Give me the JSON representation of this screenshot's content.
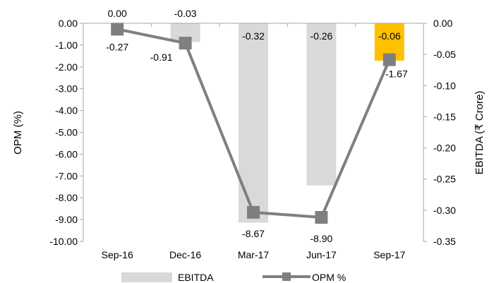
{
  "chart_data": {
    "type": "bar+line",
    "categories": [
      "Sep-16",
      "Dec-16",
      "Mar-17",
      "Jun-17",
      "Sep-17"
    ],
    "series": [
      {
        "name": "EBITDA",
        "chart": "bar",
        "axis": "right",
        "values": [
          0.0,
          -0.03,
          -0.32,
          -0.26,
          -0.06
        ],
        "labels": [
          "0.00",
          "-0.03",
          "-0.32",
          "-0.26",
          "-0.06"
        ],
        "color": "#d9d9d9",
        "highlight_color": "#ffc000",
        "highlight_index": 4
      },
      {
        "name": "OPM %",
        "chart": "line",
        "axis": "left",
        "values": [
          -0.27,
          -0.91,
          -8.67,
          -8.9,
          -1.67
        ],
        "labels": [
          "-0.27",
          "-0.91",
          "-8.67",
          "-8.90",
          "-1.67"
        ],
        "color": "#7f7f7f",
        "marker": "square"
      }
    ],
    "left_axis": {
      "label": "OPM (%)",
      "ylim": [
        -10,
        0
      ],
      "ticks": [
        0,
        -1,
        -2,
        -3,
        -4,
        -5,
        -6,
        -7,
        -8,
        -9,
        -10
      ],
      "tick_labels": [
        "0.00",
        "-1.00",
        "-2.00",
        "-3.00",
        "-4.00",
        "-5.00",
        "-6.00",
        "-7.00",
        "-8.00",
        "-9.00",
        "-10.00"
      ]
    },
    "right_axis": {
      "label": "EBITDA (₹ Crore)",
      "ylim": [
        -0.35,
        0
      ],
      "ticks": [
        0,
        -0.05,
        -0.1,
        -0.15,
        -0.2,
        -0.25,
        -0.3,
        -0.35
      ],
      "tick_labels": [
        "0.00",
        "-0.05",
        "-0.10",
        "-0.15",
        "-0.20",
        "-0.25",
        "-0.30",
        "-0.35"
      ]
    },
    "grid": false,
    "legend": "bottom"
  }
}
